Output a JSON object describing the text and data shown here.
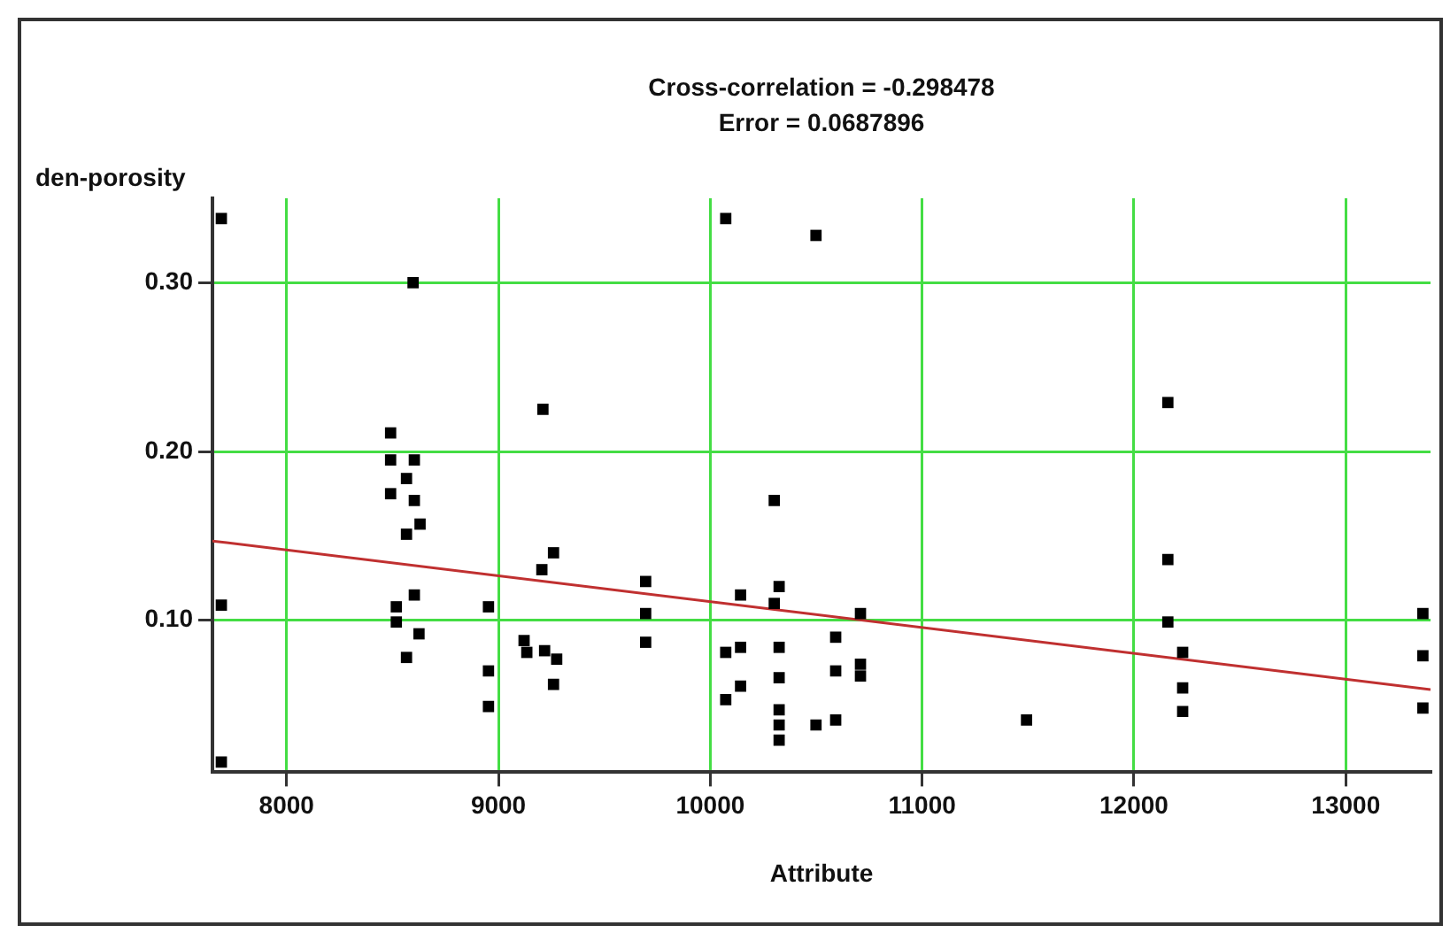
{
  "chart_data": {
    "type": "scatter",
    "title": "Cross-correlation = -0.298478",
    "subtitle": "Error = 0.0687896",
    "xlabel": "Attribute",
    "ylabel": "den-porosity",
    "marker": "square",
    "grid": true,
    "xlim": [
      7650,
      13400
    ],
    "xticks": [
      8000,
      9000,
      10000,
      11000,
      12000,
      13000
    ],
    "ylim": [
      0.01,
      0.35
    ],
    "yticks": [
      {
        "value": 0.1,
        "label": "0.10"
      },
      {
        "value": 0.2,
        "label": "0.20"
      },
      {
        "value": 0.3,
        "label": "0.30"
      }
    ],
    "series": [
      {
        "color": "#000000",
        "x": [
          7692,
          7692,
          7692,
          8597,
          8491,
          8491,
          8603,
          8491,
          8603,
          8566,
          8630,
          8566,
          8603,
          8518,
          8518,
          8625,
          8566,
          8953,
          8953,
          8953,
          9210,
          9260,
          9205,
          9121,
          9134,
          9218,
          9275,
          9260,
          9695,
          9695,
          9695,
          10073,
          10143,
          10073,
          10143,
          10143,
          10073,
          10302,
          10325,
          10302,
          10325,
          10325,
          10325,
          10325,
          10325,
          10499,
          10592,
          10592,
          10709,
          10709,
          10709,
          10499,
          10592,
          11493,
          12160,
          12160,
          12160,
          12230,
          12230,
          12230,
          13364,
          13364,
          13364
        ],
        "values": [
          0.338,
          0.109,
          0.016,
          0.3,
          0.211,
          0.195,
          0.195,
          0.175,
          0.171,
          0.184,
          0.157,
          0.151,
          0.115,
          0.108,
          0.099,
          0.092,
          0.078,
          0.108,
          0.07,
          0.049,
          0.225,
          0.14,
          0.13,
          0.088,
          0.081,
          0.082,
          0.077,
          0.062,
          0.123,
          0.104,
          0.087,
          0.338,
          0.115,
          0.081,
          0.084,
          0.061,
          0.053,
          0.171,
          0.12,
          0.11,
          0.084,
          0.066,
          0.047,
          0.038,
          0.029,
          0.328,
          0.09,
          0.07,
          0.104,
          0.074,
          0.067,
          0.038,
          0.041,
          0.041,
          0.229,
          0.136,
          0.099,
          0.081,
          0.06,
          0.046,
          0.104,
          0.079,
          0.048
        ]
      },
      {
        "type": "line",
        "marker": "none",
        "color": "#c03030",
        "x": [
          7650,
          13400
        ],
        "values": [
          0.147,
          0.059
        ]
      }
    ]
  }
}
